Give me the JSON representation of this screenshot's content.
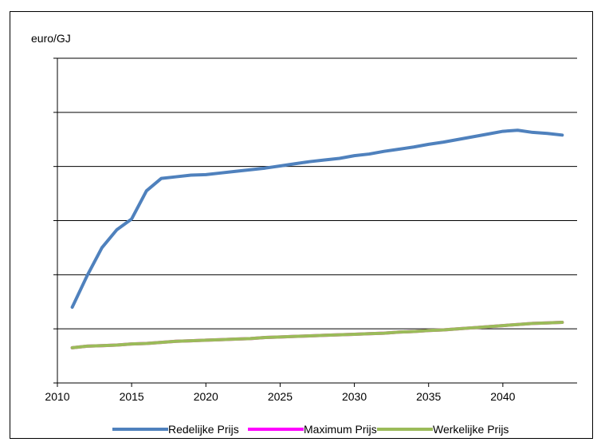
{
  "chart_data": {
    "type": "line",
    "title": "",
    "ylabel": "euro/GJ",
    "xlabel": "",
    "xlim": [
      2010,
      2045
    ],
    "ylim": [
      0,
      6
    ],
    "x_ticks": [
      2010,
      2015,
      2020,
      2025,
      2030,
      2035,
      2040
    ],
    "y_gridlines": [
      1,
      2,
      3,
      4,
      5
    ],
    "legend_position": "bottom",
    "x": [
      2011,
      2012,
      2013,
      2014,
      2015,
      2016,
      2017,
      2018,
      2019,
      2020,
      2021,
      2022,
      2023,
      2024,
      2025,
      2026,
      2027,
      2028,
      2029,
      2030,
      2031,
      2032,
      2033,
      2034,
      2035,
      2036,
      2037,
      2038,
      2039,
      2040,
      2041,
      2042,
      2043,
      2044
    ],
    "series": [
      {
        "name": "Redelijke Prijs",
        "color": "#4f81bd",
        "values": [
          1.4,
          1.98,
          2.5,
          2.83,
          3.03,
          3.55,
          3.78,
          3.81,
          3.84,
          3.85,
          3.88,
          3.91,
          3.94,
          3.97,
          4.01,
          4.05,
          4.09,
          4.12,
          4.15,
          4.2,
          4.23,
          4.28,
          4.32,
          4.36,
          4.41,
          4.45,
          4.5,
          4.55,
          4.6,
          4.65,
          4.67,
          4.63,
          4.61,
          4.58
        ]
      },
      {
        "name": "Maximum Prijs",
        "color": "#ff00ff",
        "values": [
          0.65,
          0.68,
          0.69,
          0.7,
          0.72,
          0.73,
          0.75,
          0.77,
          0.78,
          0.79,
          0.8,
          0.81,
          0.82,
          0.84,
          0.85,
          0.86,
          0.87,
          0.88,
          0.89,
          0.9,
          0.91,
          0.92,
          0.94,
          0.95,
          0.97,
          0.98,
          1.0,
          1.02,
          1.04,
          1.06,
          1.08,
          1.1,
          1.11,
          1.12
        ]
      },
      {
        "name": "Werkelijke Prijs",
        "color": "#9bbb59",
        "values": [
          0.65,
          0.68,
          0.69,
          0.7,
          0.72,
          0.73,
          0.75,
          0.77,
          0.78,
          0.79,
          0.8,
          0.81,
          0.82,
          0.84,
          0.85,
          0.86,
          0.87,
          0.88,
          0.89,
          0.9,
          0.91,
          0.92,
          0.94,
          0.95,
          0.97,
          0.98,
          1.0,
          1.02,
          1.04,
          1.06,
          1.08,
          1.1,
          1.11,
          1.12
        ]
      }
    ]
  }
}
